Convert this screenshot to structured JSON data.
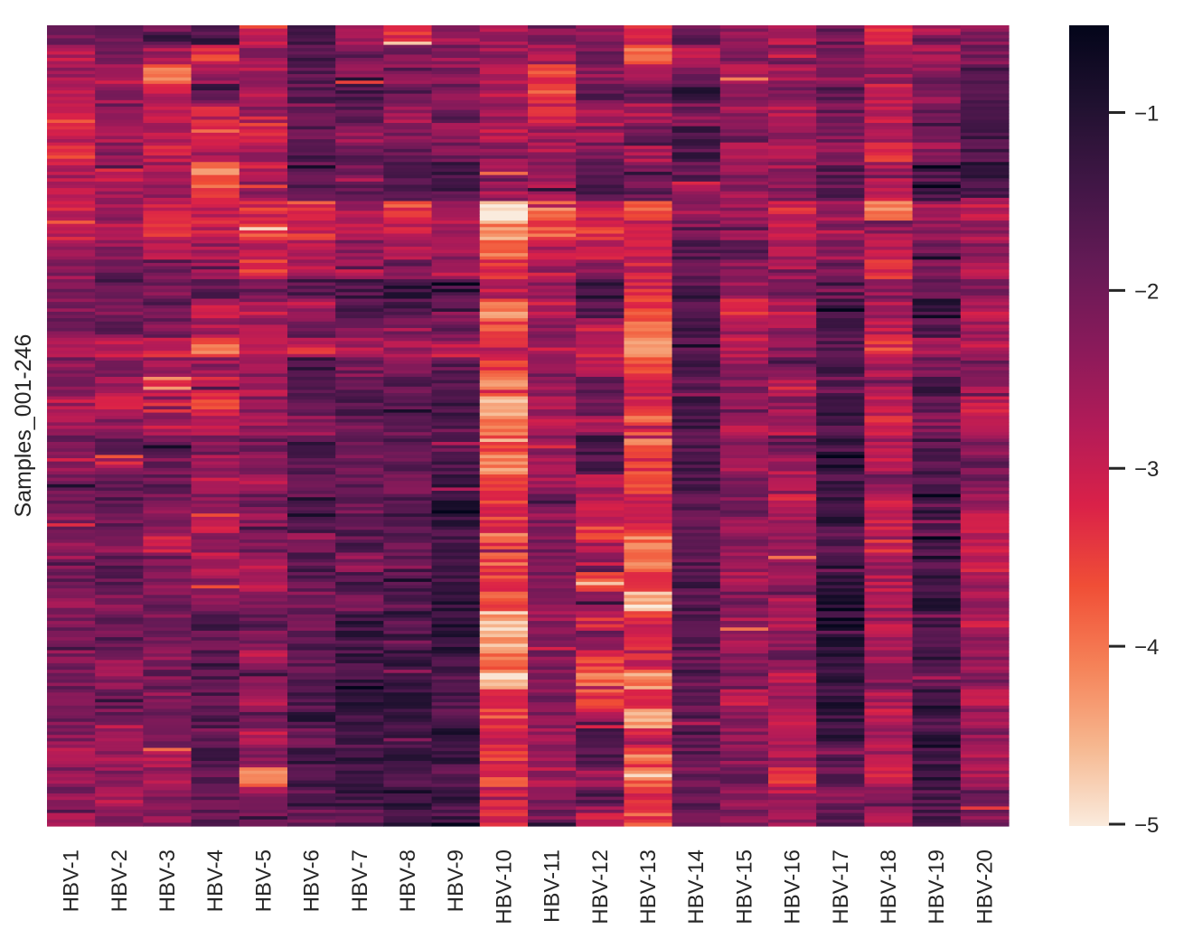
{
  "chart_data": {
    "type": "heatmap",
    "title": "",
    "xlabel": "",
    "ylabel": "Samples_001-246",
    "x_categories": [
      "HBV-1",
      "HBV-2",
      "HBV-3",
      "HBV-4",
      "HBV-5",
      "HBV-6",
      "HBV-7",
      "HBV-8",
      "HBV-9",
      "HBV-10",
      "HBV-11",
      "HBV-12",
      "HBV-13",
      "HBV-14",
      "HBV-15",
      "HBV-16",
      "HBV-17",
      "HBV-18",
      "HBV-19",
      "HBV-20"
    ],
    "n_rows": 246,
    "rows_per_band": 6,
    "value_note": "Estimated values per column, averaged over 41 consecutive bands of 6 samples (top to bottom)",
    "colormap": "rocket",
    "colorbar": {
      "vmin": -5.0,
      "vmax": -0.5,
      "ticks": [
        -1,
        -2,
        -3,
        -4,
        -5
      ],
      "tick_labels": [
        "−1",
        "−2",
        "−3",
        "−4",
        "−5"
      ],
      "placement": "right"
    },
    "band_values": [
      [
        -2.0,
        -2.8,
        -2.6,
        -3.0,
        -3.1,
        -2.9,
        -3.4,
        -2.8,
        -2.7,
        -2.9,
        -3.0,
        -2.5,
        -2.3,
        -2.0,
        -2.3,
        -2.0,
        -2.7,
        -2.2,
        -2.4,
        -2.8,
        -2.6,
        -2.0,
        -2.3,
        -2.0,
        -2.1,
        -2.2,
        -2.3,
        -2.4,
        -2.0,
        -2.3,
        -2.0,
        -1.9,
        -2.2,
        -2.0,
        -2.3,
        -2.1,
        -2.2,
        -2.7,
        -2.3,
        -2.1,
        -2.4
      ],
      [
        -2.1,
        -1.8,
        -2.8,
        -2.4,
        -2.2,
        -2.6,
        -2.3,
        -3.0,
        -2.7,
        -2.5,
        -2.7,
        -2.3,
        -1.8,
        -1.7,
        -2.0,
        -1.9,
        -2.9,
        -2.0,
        -2.6,
        -2.8,
        -2.3,
        -1.8,
        -2.4,
        -1.8,
        -1.7,
        -1.9,
        -2.2,
        -1.8,
        -1.7,
        -2.1,
        -1.8,
        -1.9,
        -2.3,
        -2.4,
        -1.9,
        -2.0,
        -2.7,
        -2.5,
        -2.3,
        -2.8,
        -2.3
      ],
      [
        -1.9,
        -2.6,
        -3.8,
        -2.8,
        -2.9,
        -2.9,
        -3.1,
        -2.6,
        -2.5,
        -3.1,
        -3.3,
        -2.6,
        -1.9,
        -2.1,
        -1.8,
        -2.1,
        -3.0,
        -2.5,
        -2.9,
        -3.0,
        -2.5,
        -1.9,
        -2.0,
        -1.9,
        -2.2,
        -2.1,
        -3.0,
        -2.0,
        -2.1,
        -2.0,
        -2.0,
        -2.1,
        -2.2,
        -1.8,
        -2.3,
        -2.2,
        -2.1,
        -2.7,
        -2.5,
        -2.2,
        -2.3
      ],
      [
        -1.4,
        -3.3,
        -2.5,
        -1.7,
        -3.0,
        -3.5,
        -2.8,
        -4.0,
        -3.6,
        -2.9,
        -3.0,
        -2.5,
        -2.3,
        -1.8,
        -3.0,
        -2.7,
        -3.8,
        -2.4,
        -3.0,
        -3.4,
        -2.8,
        -2.1,
        -2.6,
        -2.7,
        -2.3,
        -3.0,
        -2.4,
        -2.8,
        -2.5,
        -2.2,
        -1.4,
        -1.9,
        -1.8,
        -1.6,
        -1.7,
        -1.6,
        -1.9,
        -1.5,
        -1.7,
        -1.9,
        -1.8
      ],
      [
        -3.0,
        -2.4,
        -2.6,
        -2.8,
        -2.3,
        -3.3,
        -2.5,
        -2.9,
        -2.5,
        -3.2,
        -3.5,
        -2.9,
        -3.3,
        -2.0,
        -2.8,
        -2.6,
        -3.0,
        -2.3,
        -2.6,
        -2.2,
        -2.5,
        -2.0,
        -2.4,
        -2.6,
        -1.9,
        -2.3,
        -2.1,
        -2.7,
        -2.8,
        -2.0,
        -1.7,
        -2.2,
        -2.7,
        -2.2,
        -2.8,
        -2.3,
        -2.8,
        -2.4,
        -3.9,
        -2.4,
        -2.0
      ],
      [
        -1.6,
        -1.5,
        -1.8,
        -1.7,
        -2.1,
        -1.8,
        -1.6,
        -2.0,
        -2.2,
        -3.4,
        -3.2,
        -2.8,
        -2.6,
        -1.6,
        -2.9,
        -2.0,
        -3.0,
        -1.4,
        -1.9,
        -2.0,
        -2.3,
        -1.5,
        -1.8,
        -2.0,
        -1.3,
        -1.4,
        -2.2,
        -1.6,
        -1.8,
        -2.1,
        -2.0,
        -1.6,
        -1.8,
        -1.4,
        -1.5,
        -1.3,
        -2.1,
        -1.4,
        -1.5,
        -1.7,
        -2.0
      ],
      [
        -2.3,
        -1.9,
        -2.2,
        -1.5,
        -1.7,
        -2.4,
        -1.9,
        -2.1,
        -1.9,
        -2.7,
        -2.9,
        -2.3,
        -2.5,
        -1.5,
        -1.7,
        -2.2,
        -2.7,
        -2.1,
        -1.8,
        -1.7,
        -1.9,
        -2.1,
        -1.9,
        -1.8,
        -2.0,
        -1.6,
        -1.7,
        -2.3,
        -1.6,
        -2.0,
        -1.3,
        -1.4,
        -1.4,
        -1.3,
        -1.3,
        -1.2,
        -1.6,
        -1.3,
        -1.2,
        -1.4,
        -1.7
      ],
      [
        -3.2,
        -2.1,
        -2.6,
        -1.8,
        -2.5,
        -2.1,
        -1.9,
        -1.6,
        -1.5,
        -3.5,
        -3.0,
        -2.6,
        -2.0,
        -1.3,
        -1.6,
        -2.2,
        -2.6,
        -2.1,
        -1.7,
        -1.8,
        -1.9,
        -1.6,
        -1.7,
        -1.9,
        -1.7,
        -1.6,
        -1.8,
        -1.7,
        -1.6,
        -1.8,
        -1.4,
        -1.5,
        -1.3,
        -1.4,
        -1.1,
        -1.3,
        -1.5,
        -1.4,
        -1.4,
        -1.2,
        -1.4
      ],
      [
        -2.5,
        -2.4,
        -2.3,
        -2.1,
        -1.9,
        -2.3,
        -2.1,
        -1.4,
        -1.5,
        -2.8,
        -2.8,
        -2.4,
        -2.8,
        -1.4,
        -2.2,
        -2.0,
        -3.0,
        -1.7,
        -1.5,
        -1.5,
        -1.4,
        -1.8,
        -1.6,
        -1.3,
        -1.2,
        -1.3,
        -1.4,
        -1.2,
        -1.3,
        -1.1,
        -1.1,
        -1.2,
        -1.4,
        -1.6,
        -1.5,
        -1.6,
        -1.2,
        -1.4,
        -1.6,
        -1.3,
        -1.5
      ],
      [
        -2.7,
        -2.5,
        -2.6,
        -2.8,
        -2.6,
        -2.7,
        -2.4,
        -2.7,
        -2.5,
        -4.8,
        -4.2,
        -3.8,
        -3.4,
        -2.9,
        -4.0,
        -3.6,
        -3.0,
        -3.5,
        -4.1,
        -4.4,
        -3.8,
        -3.6,
        -4.2,
        -3.6,
        -3.3,
        -3.4,
        -3.8,
        -3.7,
        -3.4,
        -3.6,
        -4.5,
        -4.3,
        -3.9,
        -4.6,
        -3.2,
        -3.5,
        -3.1,
        -3.3,
        -3.4,
        -3.0,
        -3.2
      ],
      [
        -2.3,
        -2.7,
        -3.4,
        -3.6,
        -3.0,
        -2.5,
        -2.6,
        -2.3,
        -2.5,
        -3.9,
        -3.7,
        -2.8,
        -2.5,
        -2.4,
        -2.9,
        -2.3,
        -2.8,
        -2.1,
        -2.2,
        -2.7,
        -2.8,
        -2.4,
        -2.7,
        -2.6,
        -2.1,
        -2.3,
        -2.0,
        -2.2,
        -2.2,
        -2.1,
        -2.4,
        -2.1,
        -2.2,
        -2.0,
        -2.1,
        -2.3,
        -2.4,
        -2.3,
        -2.6,
        -2.0,
        -2.1
      ],
      [
        -2.3,
        -2.0,
        -2.4,
        -1.8,
        -2.5,
        -2.7,
        -2.1,
        -1.4,
        -1.6,
        -3.1,
        -3.4,
        -3.0,
        -2.4,
        -1.3,
        -1.6,
        -2.8,
        -2.9,
        -3.0,
        -1.7,
        -2.0,
        -2.6,
        -1.4,
        -1.6,
        -2.8,
        -2.8,
        -3.2,
        -3.3,
        -1.9,
        -3.7,
        -2.2,
        -3.1,
        -2.0,
        -3.4,
        -3.8,
        -3.2,
        -2.9,
        -1.3,
        -1.7,
        -2.4,
        -1.6,
        -3.0
      ],
      [
        -3.2,
        -3.6,
        -2.5,
        -1.8,
        -2.7,
        -2.1,
        -2.6,
        -2.2,
        -1.9,
        -3.9,
        -3.1,
        -2.9,
        -3.0,
        -3.2,
        -3.5,
        -3.7,
        -4.1,
        -3.6,
        -3.0,
        -3.3,
        -3.9,
        -3.8,
        -3.4,
        -3.9,
        -3.0,
        -3.2,
        -4.0,
        -4.1,
        -3.5,
        -4.5,
        -3.2,
        -3.3,
        -3.0,
        -4.2,
        -3.0,
        -4.5,
        -2.8,
        -3.4,
        -3.9,
        -3.1,
        -3.6
      ],
      [
        -1.8,
        -2.7,
        -1.9,
        -1.3,
        -2.0,
        -1.5,
        -1.5,
        -1.8,
        -2.6,
        -2.5,
        -2.2,
        -1.6,
        -1.7,
        -1.4,
        -1.5,
        -1.3,
        -1.6,
        -1.4,
        -1.7,
        -1.4,
        -1.5,
        -1.6,
        -1.4,
        -1.5,
        -1.8,
        -1.9,
        -2.0,
        -1.7,
        -1.5,
        -1.6,
        -1.7,
        -1.6,
        -2.0,
        -1.8,
        -1.9,
        -1.7,
        -1.6,
        -1.8,
        -2.0,
        -1.7,
        -1.9
      ],
      [
        -2.5,
        -2.1,
        -2.7,
        -2.2,
        -2.5,
        -2.0,
        -2.6,
        -2.3,
        -2.4,
        -2.5,
        -2.3,
        -1.9,
        -2.2,
        -2.5,
        -3.3,
        -2.6,
        -2.9,
        -2.3,
        -2.2,
        -2.5,
        -2.7,
        -2.4,
        -2.6,
        -2.0,
        -2.1,
        -2.6,
        -2.4,
        -2.3,
        -2.8,
        -2.2,
        -2.5,
        -2.6,
        -2.3,
        -2.1,
        -2.8,
        -2.3,
        -2.2,
        -2.3,
        -2.1,
        -2.5,
        -2.2
      ],
      [
        -2.8,
        -2.2,
        -2.5,
        -2.2,
        -2.9,
        -2.4,
        -2.6,
        -2.5,
        -2.2,
        -3.1,
        -3.2,
        -2.7,
        -2.6,
        -2.1,
        -2.8,
        -2.5,
        -2.3,
        -2.1,
        -2.9,
        -2.4,
        -2.7,
        -1.9,
        -2.7,
        -2.5,
        -2.9,
        -2.5,
        -2.2,
        -2.6,
        -2.4,
        -2.6,
        -2.7,
        -2.4,
        -2.1,
        -2.8,
        -2.6,
        -2.7,
        -2.8,
        -2.5,
        -3.2,
        -2.7,
        -2.4
      ],
      [
        -2.0,
        -2.1,
        -2.3,
        -1.8,
        -2.0,
        -2.1,
        -2.2,
        -1.7,
        -1.8,
        -2.6,
        -2.3,
        -2.4,
        -2.0,
        -1.5,
        -1.4,
        -1.6,
        -1.7,
        -1.5,
        -1.8,
        -1.3,
        -1.5,
        -1.3,
        -1.1,
        -1.4,
        -1.2,
        -1.3,
        -1.6,
        -1.2,
        -1.2,
        -1.0,
        -1.1,
        -1.3,
        -1.0,
        -1.1,
        -1.2,
        -1.3,
        -1.3,
        -1.7,
        -1.9,
        -2.2,
        -1.8
      ],
      [
        -3.1,
        -2.6,
        -2.5,
        -3.0,
        -2.9,
        -2.4,
        -3.3,
        -2.6,
        -2.8,
        -3.9,
        -2.5,
        -2.8,
        -3.1,
        -2.3,
        -2.6,
        -2.9,
        -3.4,
        -2.7,
        -2.7,
        -2.8,
        -3.3,
        -2.6,
        -2.8,
        -2.4,
        -3.0,
        -2.9,
        -3.1,
        -2.5,
        -2.7,
        -2.6,
        -2.8,
        -2.6,
        -2.5,
        -2.2,
        -2.6,
        -2.9,
        -2.7,
        -2.6,
        -2.9,
        -2.4,
        -2.7
      ],
      [
        -2.1,
        -2.5,
        -1.8,
        -2.3,
        -2.0,
        -1.7,
        -2.4,
        -1.6,
        -1.5,
        -2.7,
        -2.3,
        -2.0,
        -2.2,
        -1.8,
        -1.3,
        -1.6,
        -2.8,
        -2.1,
        -1.4,
        -1.9,
        -2.2,
        -1.6,
        -1.5,
        -1.5,
        -1.4,
        -1.6,
        -1.5,
        -1.8,
        -1.4,
        -1.3,
        -1.4,
        -1.6,
        -1.3,
        -1.8,
        -1.2,
        -1.5,
        -1.3,
        -1.4,
        -1.1,
        -1.5,
        -1.6
      ],
      [
        -2.2,
        -2.0,
        -1.5,
        -1.4,
        -1.5,
        -1.6,
        -1.5,
        -1.3,
        -1.7,
        -2.9,
        -2.5,
        -2.4,
        -2.7,
        -2.2,
        -2.9,
        -2.6,
        -2.7,
        -2.1,
        -2.5,
        -2.9,
        -2.6,
        -2.2,
        -2.0,
        -2.1,
        -2.6,
        -2.8,
        -3.0,
        -2.7,
        -2.4,
        -2.5,
        -2.8,
        -2.4,
        -2.3,
        -2.1,
        -2.7,
        -2.4,
        -2.3,
        -2.6,
        -2.8,
        -2.0,
        -2.2
      ]
    ]
  }
}
